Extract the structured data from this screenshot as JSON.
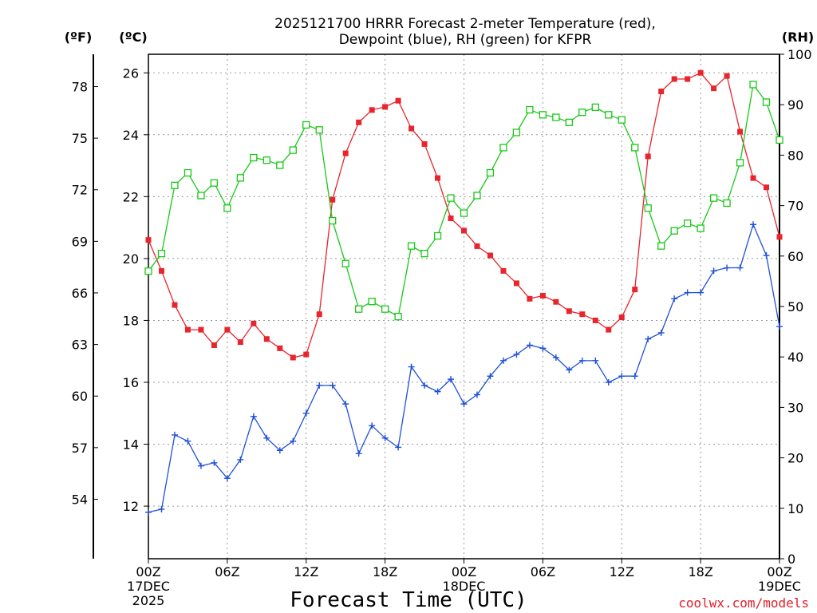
{
  "chart_data": {
    "type": "line",
    "title": "2025121700 HRRR Forecast 2-meter Temperature (red),",
    "subtitle": "Dewpoint (blue), RH (green) for KFPR",
    "xlabel": "Forecast Time (UTC)",
    "credit": "coolwx.com/models",
    "unit_labels": {
      "f": "(ºF)",
      "c": "(ºC)",
      "rh": "(RH)"
    },
    "grid": true,
    "x": [
      0,
      1,
      2,
      3,
      4,
      5,
      6,
      7,
      8,
      9,
      10,
      11,
      12,
      13,
      14,
      15,
      16,
      17,
      18,
      19,
      20,
      21,
      22,
      23,
      24,
      25,
      26,
      27,
      28,
      29,
      30,
      31,
      32,
      33,
      34,
      35,
      36,
      37,
      38,
      39,
      40,
      41,
      42,
      43,
      44,
      45,
      46,
      47,
      48
    ],
    "xlim": [
      0,
      48
    ],
    "x_ticks": [
      {
        "hour": 0,
        "lines": [
          "00Z",
          "17DEC",
          "2025"
        ]
      },
      {
        "hour": 6,
        "lines": [
          "06Z"
        ]
      },
      {
        "hour": 12,
        "lines": [
          "12Z"
        ]
      },
      {
        "hour": 18,
        "lines": [
          "18Z"
        ]
      },
      {
        "hour": 24,
        "lines": [
          "00Z",
          "18DEC"
        ]
      },
      {
        "hour": 30,
        "lines": [
          "06Z"
        ]
      },
      {
        "hour": 36,
        "lines": [
          "12Z"
        ]
      },
      {
        "hour": 42,
        "lines": [
          "18Z"
        ]
      },
      {
        "hour": 48,
        "lines": [
          "00Z",
          "19DEC"
        ]
      }
    ],
    "y_celsius": {
      "ticks": [
        12,
        14,
        16,
        18,
        20,
        22,
        24,
        26
      ],
      "labels": [
        "12",
        "14",
        "16",
        "18",
        "20",
        "22",
        "24",
        "26"
      ]
    },
    "y_fahrenheit": {
      "ticks": [
        54,
        57,
        60,
        63,
        66,
        69,
        72,
        75,
        78
      ],
      "labels": [
        "54",
        "57",
        "60",
        "63",
        "66",
        "69",
        "72",
        "75",
        "78"
      ]
    },
    "y_rh": {
      "ylim": [
        0,
        100
      ],
      "ticks": [
        0,
        10,
        20,
        30,
        40,
        50,
        60,
        70,
        80,
        90,
        100
      ],
      "labels": [
        "0",
        "10",
        "20",
        "30",
        "40",
        "50",
        "60",
        "70",
        "80",
        "90",
        "100"
      ]
    },
    "ylim_c": [
      10.3,
      26.6
    ],
    "series": [
      {
        "name": "Temperature",
        "axis": "celsius",
        "color": "#e8242c",
        "marker": "filled-square",
        "values": [
          20.6,
          19.6,
          18.5,
          17.7,
          17.7,
          17.2,
          17.7,
          17.3,
          17.9,
          17.4,
          17.1,
          16.8,
          16.9,
          18.2,
          21.9,
          23.4,
          24.4,
          24.8,
          24.9,
          25.1,
          24.2,
          23.7,
          22.6,
          21.3,
          20.9,
          20.4,
          20.1,
          19.6,
          19.2,
          18.7,
          18.8,
          18.6,
          18.3,
          18.2,
          18.0,
          17.7,
          18.1,
          19.0,
          23.3,
          25.4,
          25.8,
          25.8,
          26.0,
          25.5,
          25.9,
          24.1,
          22.6,
          22.3,
          20.7
        ]
      },
      {
        "name": "Dewpoint",
        "axis": "celsius",
        "color": "#2050d8",
        "marker": "plus",
        "values": [
          11.8,
          11.9,
          14.3,
          14.1,
          13.3,
          13.4,
          12.9,
          13.5,
          14.9,
          14.2,
          13.8,
          14.1,
          15.0,
          15.9,
          15.9,
          15.3,
          13.7,
          14.6,
          14.2,
          13.9,
          16.5,
          15.9,
          15.7,
          16.1,
          15.3,
          15.6,
          16.2,
          16.7,
          16.9,
          17.2,
          17.1,
          16.8,
          16.4,
          16.7,
          16.7,
          16.0,
          16.2,
          16.2,
          17.4,
          17.6,
          18.7,
          18.9,
          18.9,
          19.6,
          19.7,
          19.7,
          21.1,
          20.1,
          17.8
        ]
      },
      {
        "name": "RH",
        "axis": "rh",
        "color": "#18c818",
        "marker": "open-square",
        "values": [
          57.0,
          60.5,
          74.0,
          76.5,
          72.0,
          74.5,
          69.5,
          75.5,
          79.5,
          79.0,
          78.0,
          81.0,
          86.0,
          85.0,
          67.0,
          58.5,
          49.5,
          51.0,
          49.5,
          48.0,
          62.0,
          60.5,
          64.0,
          71.5,
          68.5,
          72.0,
          76.5,
          81.5,
          84.5,
          89.0,
          88.0,
          87.5,
          86.5,
          88.5,
          89.5,
          88.0,
          87.0,
          81.5,
          69.5,
          62.0,
          65.0,
          66.5,
          65.5,
          71.5,
          70.5,
          78.5,
          94.0,
          90.5,
          83.0
        ]
      }
    ]
  }
}
